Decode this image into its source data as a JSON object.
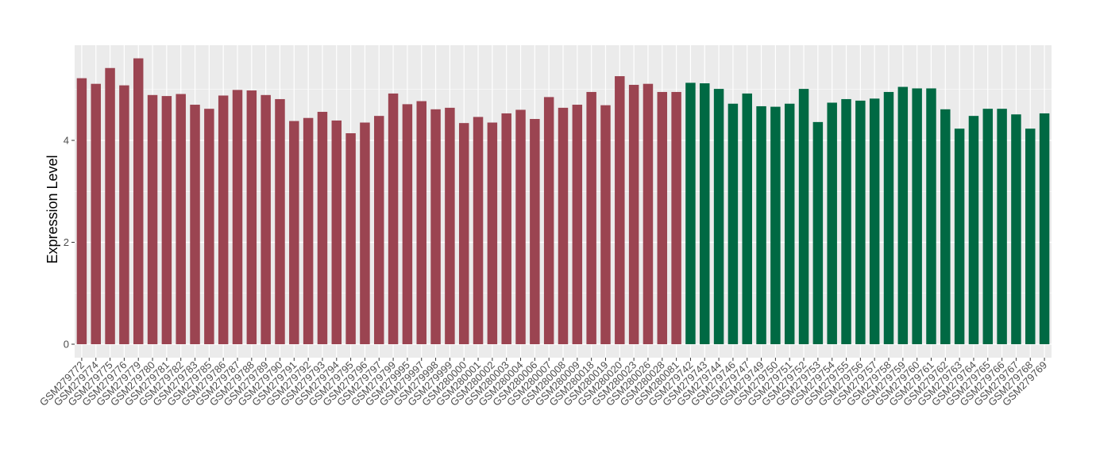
{
  "chart_data": {
    "type": "bar",
    "title": "",
    "xlabel": "",
    "ylabel": "Expression Level",
    "ylim": [
      0,
      5.9
    ],
    "yticks": [
      0,
      2,
      4
    ],
    "grid": true,
    "legend": "none",
    "colors": {
      "group1": "#9b4451",
      "group2": "#006943",
      "panel": "#ebebeb",
      "grid": "#ffffff"
    },
    "categories": [
      "GSM279772",
      "GSM279774",
      "GSM279775",
      "GSM279776",
      "GSM279779",
      "GSM279780",
      "GSM279781",
      "GSM279782",
      "GSM279783",
      "GSM279785",
      "GSM279786",
      "GSM279787",
      "GSM279788",
      "GSM279789",
      "GSM279790",
      "GSM279791",
      "GSM279792",
      "GSM279793",
      "GSM279794",
      "GSM279795",
      "GSM279796",
      "GSM279797",
      "GSM279799",
      "GSM279995",
      "GSM279997",
      "GSM279998",
      "GSM279999",
      "GSM280000",
      "GSM280001",
      "GSM280002",
      "GSM280003",
      "GSM280004",
      "GSM280006",
      "GSM280007",
      "GSM280008",
      "GSM280009",
      "GSM280018",
      "GSM280019",
      "GSM280020",
      "GSM280023",
      "GSM280026",
      "GSM280028",
      "GSM280081",
      "GSM279742",
      "GSM279743",
      "GSM279744",
      "GSM279746",
      "GSM279747",
      "GSM279749",
      "GSM279750",
      "GSM279751",
      "GSM279752",
      "GSM279753",
      "GSM279754",
      "GSM279755",
      "GSM279756",
      "GSM279757",
      "GSM279758",
      "GSM279759",
      "GSM279760",
      "GSM279761",
      "GSM279762",
      "GSM279763",
      "GSM279764",
      "GSM279765",
      "GSM279766",
      "GSM279767",
      "GSM279768",
      "GSM279769"
    ],
    "values": [
      5.22,
      5.11,
      5.42,
      5.08,
      5.61,
      4.89,
      4.87,
      4.91,
      4.7,
      4.62,
      4.88,
      4.99,
      4.98,
      4.89,
      4.81,
      4.38,
      4.44,
      4.56,
      4.39,
      4.14,
      4.35,
      4.48,
      4.92,
      4.71,
      4.77,
      4.61,
      4.64,
      4.34,
      4.46,
      4.35,
      4.53,
      4.6,
      4.42,
      4.85,
      4.64,
      4.7,
      4.95,
      4.69,
      5.26,
      5.09,
      5.11,
      4.95,
      4.95,
      5.13,
      5.12,
      5.01,
      4.72,
      4.92,
      4.67,
      4.66,
      4.72,
      5.01,
      4.36,
      4.74,
      4.81,
      4.78,
      4.82,
      4.95,
      5.05,
      5.02,
      5.02,
      4.61,
      4.23,
      4.48,
      4.62,
      4.62,
      4.51,
      4.23,
      4.53
    ],
    "groups": [
      1,
      1,
      1,
      1,
      1,
      1,
      1,
      1,
      1,
      1,
      1,
      1,
      1,
      1,
      1,
      1,
      1,
      1,
      1,
      1,
      1,
      1,
      1,
      1,
      1,
      1,
      1,
      1,
      1,
      1,
      1,
      1,
      1,
      1,
      1,
      1,
      1,
      1,
      1,
      1,
      1,
      1,
      1,
      2,
      2,
      2,
      2,
      2,
      2,
      2,
      2,
      2,
      2,
      2,
      2,
      2,
      2,
      2,
      2,
      2,
      2,
      2,
      2,
      2,
      2,
      2,
      2,
      2,
      2
    ]
  }
}
